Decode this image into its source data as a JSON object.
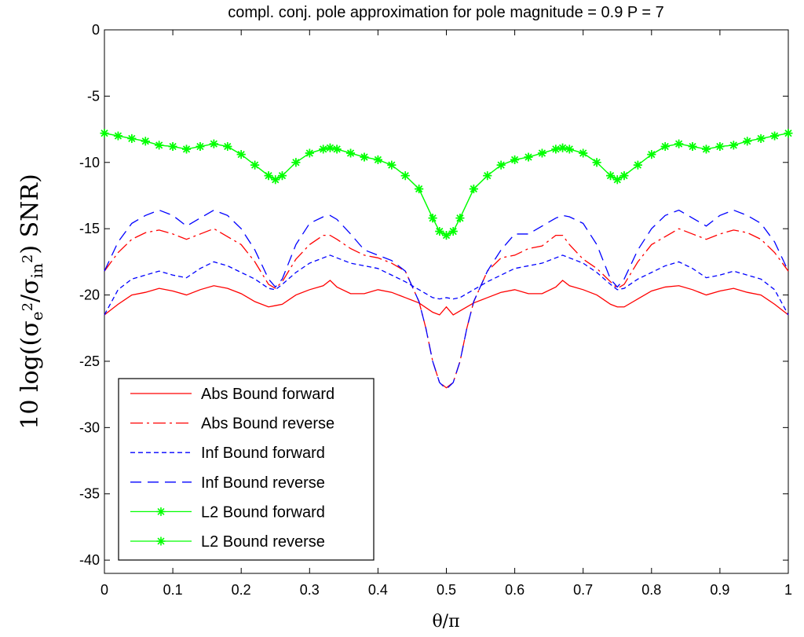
{
  "chart_data": {
    "type": "line",
    "title": "compl. conj. pole approximation for pole magnitude = 0.9 P = 7",
    "xlabel": "θ/π",
    "ylabel": "10 log((σe²/σin²) SNR)",
    "xlim": [
      0,
      1
    ],
    "ylim": [
      -41,
      0
    ],
    "xticks": [
      0,
      0.1,
      0.2,
      0.3,
      0.4,
      0.5,
      0.6,
      0.7,
      0.8,
      0.9,
      1
    ],
    "xtick_labels": [
      "0",
      "0.1",
      "0.2",
      "0.3",
      "0.4",
      "0.5",
      "0.6",
      "0.7",
      "0.8",
      "0.9",
      "1"
    ],
    "yticks": [
      0,
      -5,
      -10,
      -15,
      -20,
      -25,
      -30,
      -35,
      -40
    ],
    "ytick_labels": [
      "0",
      "-5",
      "-10",
      "-15",
      "-20",
      "-25",
      "-30",
      "-35",
      "-40"
    ],
    "grid": false,
    "legend_position": "bottom-left",
    "series": [
      {
        "name": "Abs Bound forward",
        "color": "#ff0000",
        "style": "solid",
        "marker": "none",
        "x": [
          0,
          0.02,
          0.04,
          0.06,
          0.08,
          0.1,
          0.12,
          0.14,
          0.16,
          0.18,
          0.2,
          0.22,
          0.24,
          0.25,
          0.26,
          0.28,
          0.3,
          0.32,
          0.33,
          0.34,
          0.36,
          0.38,
          0.4,
          0.42,
          0.44,
          0.46,
          0.48,
          0.49,
          0.5,
          0.51,
          0.52,
          0.54,
          0.56,
          0.58,
          0.6,
          0.62,
          0.64,
          0.66,
          0.67,
          0.68,
          0.7,
          0.72,
          0.74,
          0.75,
          0.76,
          0.78,
          0.8,
          0.82,
          0.84,
          0.86,
          0.88,
          0.9,
          0.92,
          0.94,
          0.96,
          0.98,
          1
        ],
        "y": [
          -21.5,
          -20.7,
          -20.0,
          -19.8,
          -19.5,
          -19.7,
          -20.0,
          -19.6,
          -19.3,
          -19.5,
          -19.9,
          -20.5,
          -20.9,
          -20.8,
          -20.7,
          -20.0,
          -19.6,
          -19.3,
          -18.9,
          -19.4,
          -19.9,
          -19.9,
          -19.6,
          -19.8,
          -20.2,
          -20.6,
          -21.3,
          -21.5,
          -20.9,
          -21.5,
          -21.2,
          -20.6,
          -20.2,
          -19.8,
          -19.6,
          -19.9,
          -19.9,
          -19.4,
          -18.9,
          -19.3,
          -19.6,
          -20.0,
          -20.7,
          -20.9,
          -20.9,
          -20.3,
          -19.7,
          -19.4,
          -19.3,
          -19.6,
          -20.0,
          -19.7,
          -19.5,
          -19.8,
          -20.0,
          -20.7,
          -21.5
        ]
      },
      {
        "name": "Abs Bound reverse",
        "color": "#ff0000",
        "style": "dashdot",
        "marker": "none",
        "x": [
          0,
          0.02,
          0.04,
          0.06,
          0.08,
          0.1,
          0.12,
          0.14,
          0.16,
          0.18,
          0.2,
          0.22,
          0.24,
          0.25,
          0.26,
          0.28,
          0.3,
          0.32,
          0.33,
          0.34,
          0.36,
          0.38,
          0.4,
          0.42,
          0.44,
          0.46,
          0.47,
          0.48,
          0.49,
          0.5,
          0.51,
          0.52,
          0.53,
          0.54,
          0.56,
          0.58,
          0.6,
          0.62,
          0.64,
          0.66,
          0.67,
          0.68,
          0.7,
          0.72,
          0.74,
          0.75,
          0.76,
          0.78,
          0.8,
          0.82,
          0.84,
          0.86,
          0.88,
          0.9,
          0.92,
          0.94,
          0.96,
          0.98,
          1
        ],
        "y": [
          -18.2,
          -16.8,
          -15.8,
          -15.3,
          -15.1,
          -15.4,
          -15.8,
          -15.4,
          -15.0,
          -15.6,
          -16.2,
          -17.5,
          -19.2,
          -19.5,
          -19.0,
          -17.3,
          -16.2,
          -15.5,
          -15.5,
          -15.8,
          -16.5,
          -17.0,
          -17.2,
          -17.6,
          -18.2,
          -20.5,
          -22.5,
          -25.0,
          -26.6,
          -27.0,
          -26.6,
          -25.0,
          -22.5,
          -20.5,
          -18.2,
          -17.2,
          -17.0,
          -16.5,
          -16.3,
          -15.5,
          -15.5,
          -16.2,
          -17.3,
          -18.0,
          -19.0,
          -19.5,
          -19.2,
          -17.5,
          -16.2,
          -15.6,
          -15.0,
          -15.4,
          -15.8,
          -15.4,
          -15.1,
          -15.3,
          -15.8,
          -16.8,
          -18.2
        ]
      },
      {
        "name": "Inf Bound forward",
        "color": "#0000ff",
        "style": "dashed",
        "marker": "none",
        "x": [
          0,
          0.02,
          0.04,
          0.06,
          0.08,
          0.1,
          0.12,
          0.14,
          0.16,
          0.18,
          0.2,
          0.22,
          0.24,
          0.25,
          0.26,
          0.28,
          0.3,
          0.32,
          0.33,
          0.34,
          0.36,
          0.38,
          0.4,
          0.42,
          0.44,
          0.46,
          0.48,
          0.49,
          0.5,
          0.51,
          0.52,
          0.54,
          0.56,
          0.58,
          0.6,
          0.62,
          0.64,
          0.66,
          0.67,
          0.68,
          0.7,
          0.72,
          0.74,
          0.75,
          0.76,
          0.78,
          0.8,
          0.82,
          0.84,
          0.86,
          0.88,
          0.9,
          0.92,
          0.94,
          0.96,
          0.98,
          1
        ],
        "y": [
          -21.5,
          -19.6,
          -18.8,
          -18.5,
          -18.2,
          -18.5,
          -18.7,
          -18.0,
          -17.5,
          -17.8,
          -18.3,
          -18.8,
          -19.5,
          -19.6,
          -19.2,
          -18.3,
          -17.6,
          -17.2,
          -17.0,
          -17.2,
          -17.6,
          -17.8,
          -18.0,
          -18.5,
          -19.0,
          -19.6,
          -20.2,
          -20.3,
          -20.2,
          -20.3,
          -20.2,
          -19.6,
          -19.0,
          -18.5,
          -18.0,
          -17.8,
          -17.6,
          -17.2,
          -17.0,
          -17.2,
          -17.6,
          -18.3,
          -19.2,
          -19.6,
          -19.5,
          -18.8,
          -18.3,
          -17.8,
          -17.5,
          -18.0,
          -18.7,
          -18.5,
          -18.2,
          -18.5,
          -18.8,
          -19.6,
          -21.5
        ]
      },
      {
        "name": "Inf Bound reverse",
        "color": "#0000ff",
        "style": "longdash",
        "marker": "none",
        "x": [
          0,
          0.02,
          0.04,
          0.06,
          0.08,
          0.1,
          0.12,
          0.14,
          0.16,
          0.18,
          0.2,
          0.22,
          0.24,
          0.25,
          0.26,
          0.28,
          0.3,
          0.32,
          0.33,
          0.34,
          0.36,
          0.38,
          0.4,
          0.42,
          0.44,
          0.46,
          0.47,
          0.48,
          0.49,
          0.5,
          0.51,
          0.52,
          0.53,
          0.54,
          0.56,
          0.58,
          0.6,
          0.62,
          0.64,
          0.66,
          0.67,
          0.68,
          0.7,
          0.72,
          0.74,
          0.75,
          0.76,
          0.78,
          0.8,
          0.82,
          0.84,
          0.86,
          0.88,
          0.9,
          0.92,
          0.94,
          0.96,
          0.98,
          1
        ],
        "y": [
          -18.2,
          -16.0,
          -14.6,
          -14.0,
          -13.6,
          -14.0,
          -14.8,
          -14.2,
          -13.6,
          -14.0,
          -15.0,
          -16.6,
          -18.8,
          -19.4,
          -18.8,
          -16.2,
          -14.6,
          -14.1,
          -14.0,
          -14.3,
          -15.4,
          -16.6,
          -17.0,
          -17.4,
          -18.2,
          -20.5,
          -22.5,
          -25.0,
          -26.6,
          -27.1,
          -26.6,
          -25.0,
          -22.5,
          -20.5,
          -18.2,
          -16.6,
          -15.4,
          -15.4,
          -14.8,
          -14.2,
          -14.0,
          -14.1,
          -14.6,
          -16.2,
          -18.8,
          -19.4,
          -18.8,
          -16.6,
          -15.0,
          -14.0,
          -13.6,
          -14.2,
          -14.8,
          -14.0,
          -13.6,
          -14.0,
          -14.6,
          -16.0,
          -18.2
        ]
      },
      {
        "name": "L2 Bound forward",
        "color": "#00ff00",
        "style": "solid",
        "marker": "star",
        "x": [
          0,
          0.02,
          0.04,
          0.06,
          0.08,
          0.1,
          0.12,
          0.14,
          0.16,
          0.18,
          0.2,
          0.22,
          0.24,
          0.25,
          0.26,
          0.28,
          0.3,
          0.32,
          0.33,
          0.34,
          0.36,
          0.38,
          0.4,
          0.42,
          0.44,
          0.46,
          0.48,
          0.49,
          0.5,
          0.51,
          0.52,
          0.54,
          0.56,
          0.58,
          0.6,
          0.62,
          0.64,
          0.66,
          0.67,
          0.68,
          0.7,
          0.72,
          0.74,
          0.75,
          0.76,
          0.78,
          0.8,
          0.82,
          0.84,
          0.86,
          0.88,
          0.9,
          0.92,
          0.94,
          0.96,
          0.98,
          1
        ],
        "y": [
          -7.8,
          -8.0,
          -8.2,
          -8.4,
          -8.7,
          -8.8,
          -9.0,
          -8.8,
          -8.6,
          -8.8,
          -9.4,
          -10.2,
          -11.0,
          -11.3,
          -11.0,
          -10.0,
          -9.3,
          -9.0,
          -8.9,
          -9.0,
          -9.3,
          -9.6,
          -9.8,
          -10.2,
          -11.0,
          -12.0,
          -14.2,
          -15.2,
          -15.5,
          -15.2,
          -14.2,
          -12.0,
          -11.0,
          -10.2,
          -9.8,
          -9.6,
          -9.3,
          -9.0,
          -8.9,
          -9.0,
          -9.3,
          -10.0,
          -11.0,
          -11.3,
          -11.0,
          -10.2,
          -9.4,
          -8.8,
          -8.6,
          -8.8,
          -9.0,
          -8.8,
          -8.7,
          -8.4,
          -8.2,
          -8.0,
          -7.8
        ]
      },
      {
        "name": "L2 Bound reverse",
        "color": "#00ff00",
        "style": "solid",
        "marker": "star",
        "x": [
          0,
          0.02,
          0.04,
          0.06,
          0.08,
          0.1,
          0.12,
          0.14,
          0.16,
          0.18,
          0.2,
          0.22,
          0.24,
          0.25,
          0.26,
          0.28,
          0.3,
          0.32,
          0.33,
          0.34,
          0.36,
          0.38,
          0.4,
          0.42,
          0.44,
          0.46,
          0.48,
          0.49,
          0.5,
          0.51,
          0.52,
          0.54,
          0.56,
          0.58,
          0.6,
          0.62,
          0.64,
          0.66,
          0.67,
          0.68,
          0.7,
          0.72,
          0.74,
          0.75,
          0.76,
          0.78,
          0.8,
          0.82,
          0.84,
          0.86,
          0.88,
          0.9,
          0.92,
          0.94,
          0.96,
          0.98,
          1
        ],
        "y": [
          -7.8,
          -8.0,
          -8.2,
          -8.4,
          -8.7,
          -8.8,
          -9.0,
          -8.8,
          -8.6,
          -8.8,
          -9.4,
          -10.2,
          -11.0,
          -11.3,
          -11.0,
          -10.0,
          -9.3,
          -9.0,
          -8.9,
          -9.0,
          -9.3,
          -9.6,
          -9.8,
          -10.2,
          -11.0,
          -12.0,
          -14.2,
          -15.2,
          -15.5,
          -15.2,
          -14.2,
          -12.0,
          -11.0,
          -10.2,
          -9.8,
          -9.6,
          -9.3,
          -9.0,
          -8.9,
          -9.0,
          -9.3,
          -10.0,
          -11.0,
          -11.3,
          -11.0,
          -10.2,
          -9.4,
          -8.8,
          -8.6,
          -8.8,
          -9.0,
          -8.8,
          -8.7,
          -8.4,
          -8.2,
          -8.0,
          -7.8
        ]
      }
    ]
  }
}
